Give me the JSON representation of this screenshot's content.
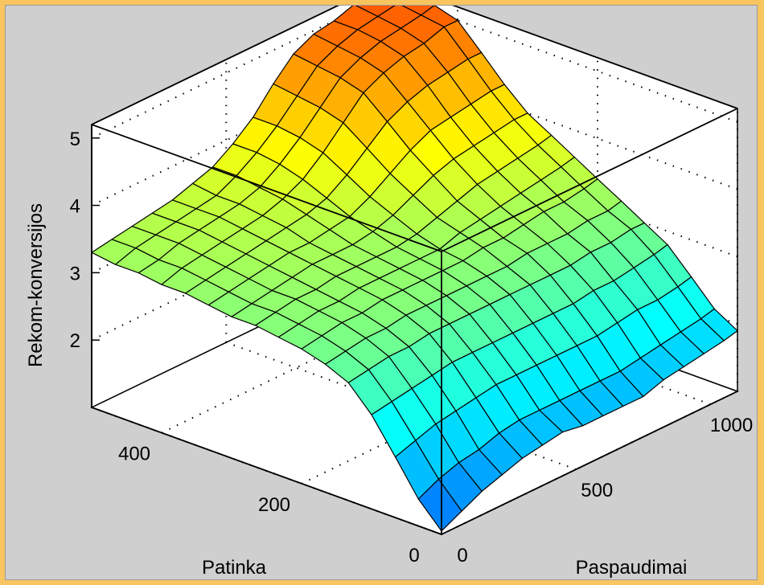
{
  "chart_data": {
    "type": "surface",
    "title": "",
    "xlabel": "Paspaudimai",
    "ylabel": "Patinka",
    "zlabel": "Rekom-konversijos",
    "xlim": [
      0,
      1100
    ],
    "ylim": [
      0,
      500
    ],
    "zlim": [
      1,
      5.2
    ],
    "x_ticks": [
      0,
      500,
      1000
    ],
    "y_ticks": [
      0,
      200,
      400
    ],
    "z_ticks": [
      2,
      3,
      4,
      5
    ],
    "grid": true,
    "colormap": "jet",
    "x": [
      0,
      75,
      150,
      225,
      300,
      375,
      450,
      525,
      600,
      675,
      750,
      825,
      900,
      975,
      1050,
      1100
    ],
    "y": [
      0,
      33,
      66,
      100,
      133,
      166,
      200,
      233,
      266,
      300,
      333,
      366,
      400,
      433,
      466,
      500
    ],
    "z": [
      [
        1.05,
        1.2,
        1.35,
        1.45,
        1.55,
        1.6,
        1.65,
        1.6,
        1.6,
        1.6,
        1.6,
        1.7,
        1.75,
        1.8,
        1.85,
        1.9
      ],
      [
        1.4,
        1.55,
        1.65,
        1.7,
        1.8,
        1.85,
        1.85,
        1.85,
        1.85,
        1.85,
        1.85,
        1.9,
        1.95,
        2.0,
        2.05,
        2.1
      ],
      [
        1.9,
        2.0,
        2.1,
        2.15,
        2.2,
        2.25,
        2.25,
        2.25,
        2.25,
        2.25,
        2.25,
        2.3,
        2.35,
        2.35,
        2.4,
        2.45
      ],
      [
        2.4,
        2.45,
        2.5,
        2.55,
        2.6,
        2.6,
        2.6,
        2.6,
        2.6,
        2.6,
        2.6,
        2.65,
        2.65,
        2.7,
        2.75,
        2.8
      ],
      [
        2.75,
        2.8,
        2.85,
        2.85,
        2.9,
        2.9,
        2.9,
        2.9,
        2.9,
        2.9,
        2.9,
        2.9,
        2.95,
        2.95,
        3.0,
        3.0
      ],
      [
        2.9,
        2.95,
        3.0,
        3.0,
        3.05,
        3.05,
        3.05,
        3.05,
        3.05,
        3.05,
        3.1,
        3.1,
        3.1,
        3.15,
        3.15,
        3.2
      ],
      [
        3.0,
        3.05,
        3.1,
        3.1,
        3.15,
        3.15,
        3.15,
        3.15,
        3.15,
        3.2,
        3.2,
        3.25,
        3.3,
        3.3,
        3.35,
        3.4
      ],
      [
        3.05,
        3.1,
        3.15,
        3.15,
        3.2,
        3.2,
        3.2,
        3.2,
        3.2,
        3.3,
        3.35,
        3.4,
        3.45,
        3.5,
        3.55,
        3.6
      ],
      [
        3.1,
        3.15,
        3.2,
        3.2,
        3.25,
        3.25,
        3.25,
        3.25,
        3.3,
        3.4,
        3.5,
        3.6,
        3.65,
        3.7,
        3.75,
        3.8
      ],
      [
        3.1,
        3.15,
        3.2,
        3.25,
        3.3,
        3.3,
        3.3,
        3.35,
        3.45,
        3.6,
        3.75,
        3.85,
        3.9,
        3.95,
        4.0,
        4.0
      ],
      [
        3.15,
        3.2,
        3.25,
        3.3,
        3.35,
        3.35,
        3.4,
        3.45,
        3.6,
        3.8,
        4.0,
        4.15,
        4.2,
        4.25,
        4.3,
        4.3
      ],
      [
        3.2,
        3.25,
        3.3,
        3.35,
        3.4,
        3.45,
        3.5,
        3.6,
        3.8,
        4.05,
        4.3,
        4.45,
        4.55,
        4.6,
        4.65,
        4.65
      ],
      [
        3.2,
        3.3,
        3.35,
        3.4,
        3.45,
        3.5,
        3.6,
        3.75,
        4.0,
        4.3,
        4.6,
        4.75,
        4.85,
        4.9,
        5.0,
        5.0
      ],
      [
        3.25,
        3.3,
        3.4,
        3.45,
        3.5,
        3.55,
        3.65,
        3.85,
        4.1,
        4.4,
        4.7,
        4.85,
        4.95,
        5.0,
        5.05,
        5.1
      ],
      [
        3.25,
        3.35,
        3.4,
        3.45,
        3.5,
        3.55,
        3.7,
        3.9,
        4.15,
        4.45,
        4.75,
        4.9,
        5.0,
        5.05,
        5.1,
        5.15
      ],
      [
        3.3,
        3.35,
        3.4,
        3.45,
        3.5,
        3.6,
        3.7,
        3.9,
        4.15,
        4.5,
        4.8,
        4.95,
        5.0,
        5.1,
        5.15,
        5.2
      ]
    ]
  }
}
